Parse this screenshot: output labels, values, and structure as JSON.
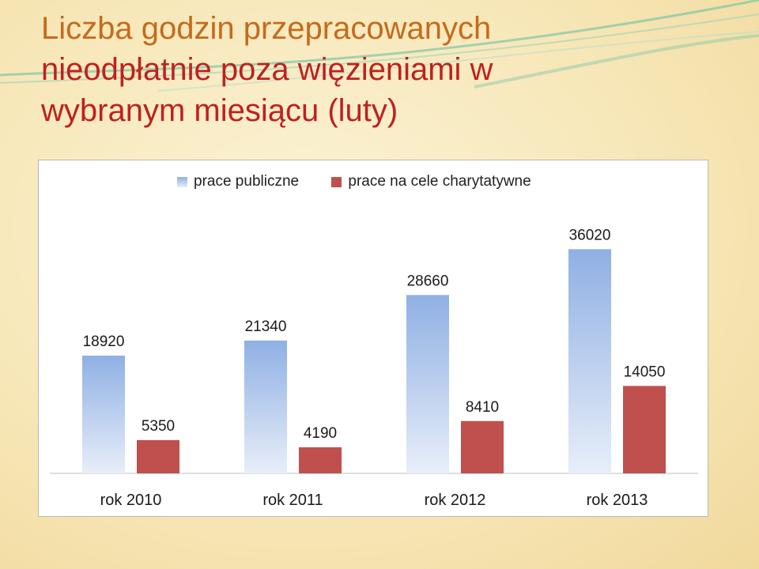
{
  "title_lines": [
    "Liczba godzin przepracowanych",
    "nieodpłatnie poza więzieniami w",
    "wybranym miesiącu  (luty)"
  ],
  "chart_data": {
    "type": "bar",
    "categories": [
      "rok 2010",
      "rok 2011",
      "rok 2012",
      "rok 2013"
    ],
    "series": [
      {
        "name": "prace publiczne",
        "values": [
          18920,
          21340,
          28660,
          36020
        ],
        "color": "#8fb0e4"
      },
      {
        "name": "prace na cele charytatywne",
        "values": [
          5350,
          4190,
          8410,
          14050
        ],
        "color": "#c0504d"
      }
    ],
    "ylim": [
      0,
      40000
    ],
    "legend_position": "top",
    "grid": false
  }
}
